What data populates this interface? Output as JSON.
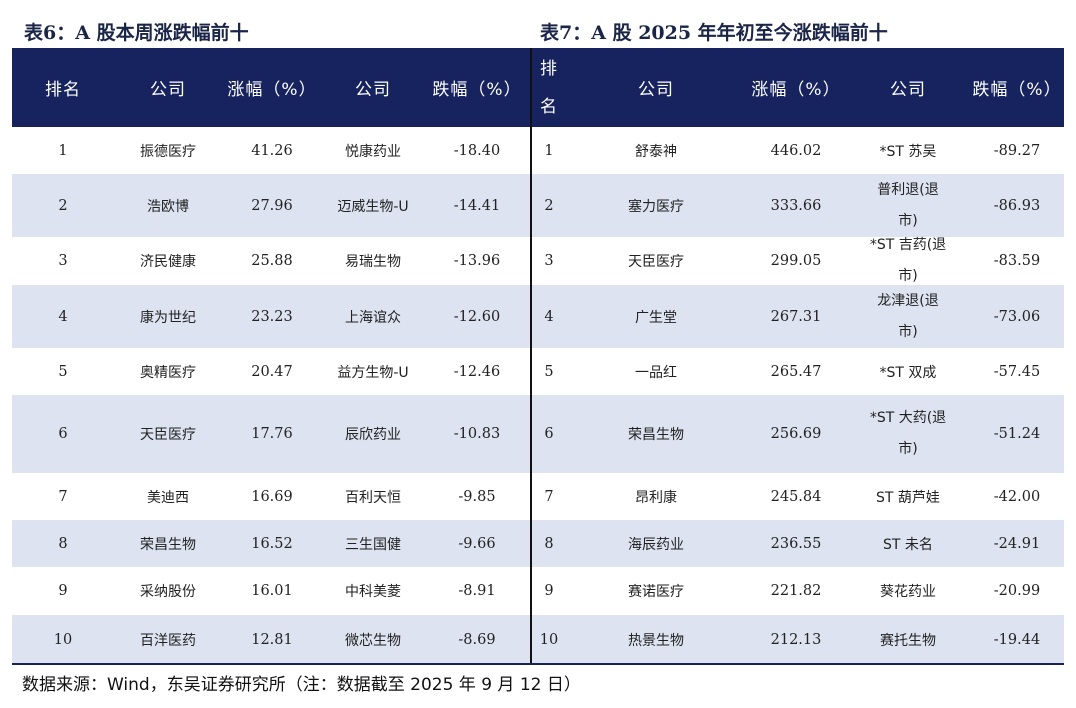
{
  "table6": {
    "title": "表6：A 股本周涨跌幅前十",
    "headers": [
      "排名",
      "公司",
      "涨幅（%）",
      "公司",
      "跌幅（%）"
    ],
    "rows": [
      [
        "1",
        "振德医疗",
        "41.26",
        "悦康药业",
        "-18.40"
      ],
      [
        "2",
        "浩欧博",
        "27.96",
        "迈威生物-U",
        "-14.41"
      ],
      [
        "3",
        "济民健康",
        "25.88",
        "易瑞生物",
        "-13.96"
      ],
      [
        "4",
        "康为世纪",
        "23.23",
        "上海谊众",
        "-12.60"
      ],
      [
        "5",
        "奥精医疗",
        "20.47",
        "益方生物-U",
        "-12.46"
      ],
      [
        "6",
        "天臣医疗",
        "17.76",
        "辰欣药业",
        "-10.83"
      ],
      [
        "7",
        "美迪西",
        "16.69",
        "百利天恒",
        "-9.85"
      ],
      [
        "8",
        "荣昌生物",
        "16.52",
        "三生国健",
        "-9.66"
      ],
      [
        "9",
        "采纳股份",
        "16.01",
        "中科美菱",
        "-8.91"
      ],
      [
        "10",
        "百洋医药",
        "12.81",
        "微芯生物",
        "-8.69"
      ]
    ]
  },
  "table7": {
    "title": "表7：A 股 2025 年年初至今涨跌幅前十",
    "headers": [
      "排\n名",
      "公司",
      "涨幅（%）",
      "公司",
      "跌幅（%）"
    ],
    "rows": [
      [
        "1",
        "舒泰神",
        "446.02",
        "*ST 苏吴",
        "-89.27"
      ],
      [
        "2",
        "塞力医疗",
        "333.66",
        "普利退(退\n市)",
        "-86.93"
      ],
      [
        "3",
        "天臣医疗",
        "299.05",
        "*ST 吉药(退\n市)",
        "-83.59"
      ],
      [
        "4",
        "广生堂",
        "267.31",
        "龙津退(退\n市)",
        "-73.06"
      ],
      [
        "5",
        "一品红",
        "265.47",
        "*ST 双成",
        "-57.45"
      ],
      [
        "6",
        "荣昌生物",
        "256.69",
        "*ST 大药(退\n市)",
        "-51.24"
      ],
      [
        "7",
        "昂利康",
        "245.84",
        "ST 葫芦娃",
        "-42.00"
      ],
      [
        "8",
        "海辰药业",
        "236.55",
        "ST 未名",
        "-24.91"
      ],
      [
        "9",
        "赛诺医疗",
        "221.82",
        "葵花药业",
        "-20.99"
      ],
      [
        "10",
        "热景生物",
        "212.13",
        "赛托生物",
        "-19.44"
      ]
    ]
  },
  "footer": "数据来源：Wind，东吴证券研究所（注：数据截至 2025 年 9 月 12 日）",
  "colors": {
    "header_bg": "#16235e",
    "row_shade": "#dde3f1",
    "title_color": "#1a2547"
  }
}
